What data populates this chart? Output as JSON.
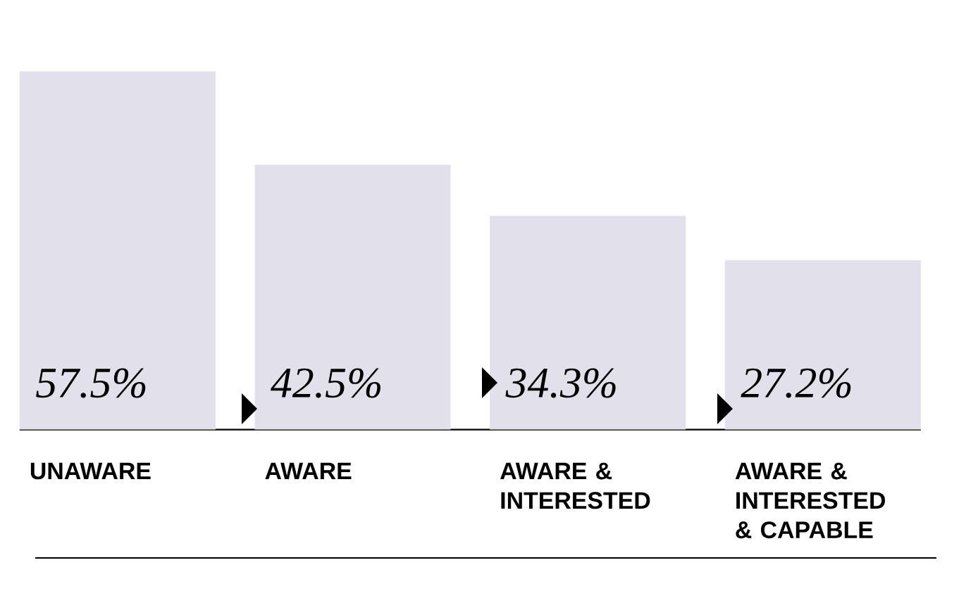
{
  "chart_data": {
    "type": "bar",
    "categories": [
      "UNAWARE",
      "AWARE",
      "AWARE & INTERESTED",
      "AWARE & INTERESTED & CAPABLE"
    ],
    "values": [
      57.5,
      42.5,
      34.3,
      27.2
    ],
    "value_labels": [
      "57.5%",
      "42.5%",
      "34.3%",
      "27.2%"
    ],
    "color": "#e2e0ea",
    "grid": false
  }
}
